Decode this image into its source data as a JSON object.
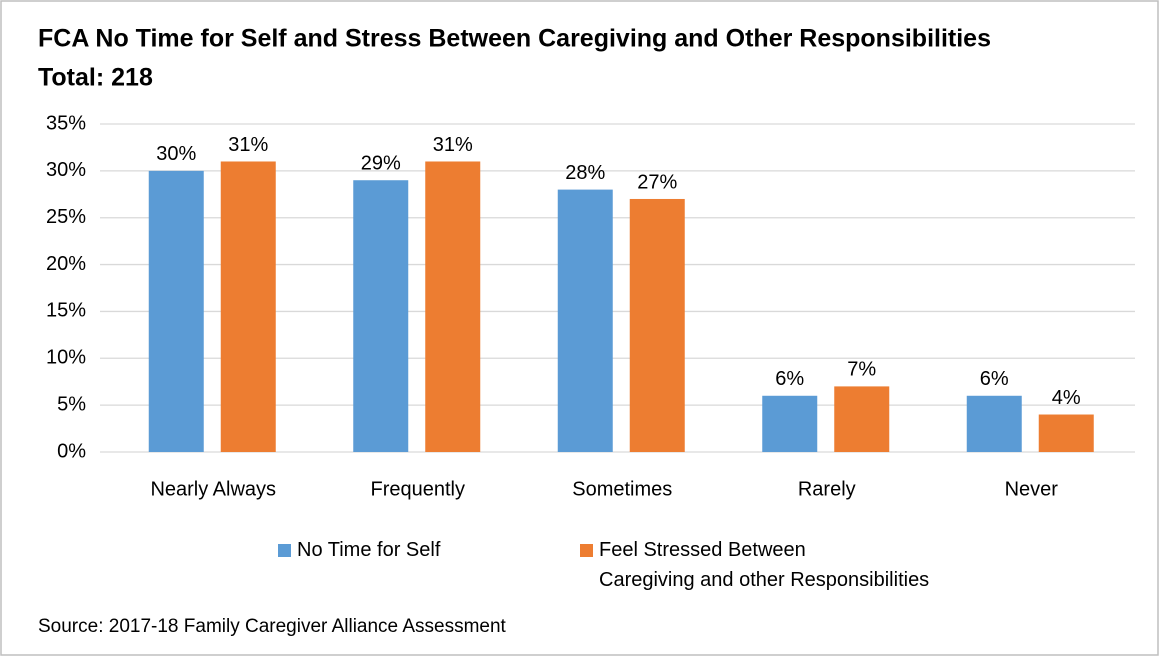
{
  "chart_data": {
    "type": "bar",
    "title": "FCA No Time for Self and Stress Between Caregiving and Other Responsibilities",
    "subtitle": "Total: 218",
    "categories": [
      "Nearly Always",
      "Frequently",
      "Sometimes",
      "Rarely",
      "Never"
    ],
    "series": [
      {
        "name": "No Time for Self",
        "color": "#5b9bd5",
        "values": [
          30,
          29,
          28,
          6,
          6
        ],
        "value_labels": [
          "30%",
          "29%",
          "28%",
          "6%",
          "6%"
        ]
      },
      {
        "name": "Feel Stressed Between\nCaregiving and other Responsibilities",
        "color": "#ed7d31",
        "values": [
          31,
          31,
          27,
          7,
          4
        ],
        "value_labels": [
          "31%",
          "31%",
          "27%",
          "7%",
          "4%"
        ]
      }
    ],
    "ylim": [
      0,
      35
    ],
    "yticks": [
      {
        "value": 0,
        "label": "0%"
      },
      {
        "value": 5,
        "label": "5%"
      },
      {
        "value": 10,
        "label": "10%"
      },
      {
        "value": 15,
        "label": "15%"
      },
      {
        "value": 20,
        "label": "20%"
      },
      {
        "value": 25,
        "label": "25%"
      },
      {
        "value": 30,
        "label": "30%"
      },
      {
        "value": 35,
        "label": "35%"
      }
    ],
    "grid": true,
    "legend": "bottom",
    "source": "Source: 2017-18 Family Caregiver Alliance Assessment"
  }
}
